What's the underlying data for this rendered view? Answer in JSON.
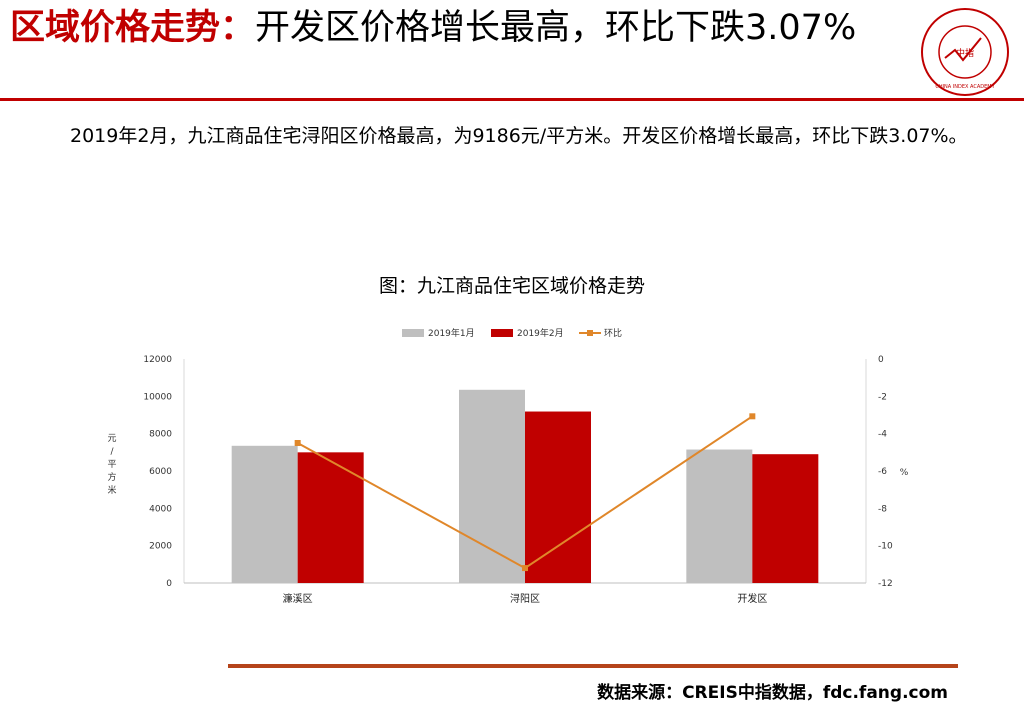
{
  "header": {
    "title_highlight": "区域价格走势：",
    "title_rest": "开发区价格增长最高，环比下跌3.07%",
    "logo_text": "中指",
    "logo_ring_text": "CHINA INDEX ACADEMY"
  },
  "body": {
    "paragraph": "2019年2月，九江商品住宅浔阳区价格最高，为9186元/平方米。开发区价格增长最高，环比下跌3.07%。"
  },
  "footer": {
    "source": "数据来源：CREIS中指数据，fdc.fang.com"
  },
  "colors": {
    "accent_red": "#c00000",
    "series_jan": "#bfbfbf",
    "series_feb": "#c00000",
    "series_mom": "#e0872a",
    "footer_line": "#b5441a"
  },
  "chart_data": {
    "type": "bar",
    "title": "图：九江商品住宅区域价格走势",
    "categories": [
      "濂溪区",
      "浔阳区",
      "开发区"
    ],
    "series": [
      {
        "name": "2019年1月",
        "type": "bar",
        "axis": "left",
        "values": [
          7350,
          10350,
          7150
        ]
      },
      {
        "name": "2019年2月",
        "type": "bar",
        "axis": "left",
        "values": [
          7000,
          9186,
          6900
        ]
      },
      {
        "name": "环比",
        "type": "line",
        "axis": "right",
        "values": [
          -4.5,
          -11.2,
          -3.07
        ]
      }
    ],
    "ylabel": "元/平方米",
    "y2label": "%",
    "ylim": [
      0,
      12000
    ],
    "y2lim": [
      -12,
      0
    ],
    "yticks": [
      "0",
      "2000",
      "4000",
      "6000",
      "8000",
      "10000",
      "12000"
    ],
    "y2ticks": [
      "-12",
      "-10",
      "-8",
      "-6",
      "-4",
      "-2",
      "0"
    ],
    "legend_position": "top"
  }
}
